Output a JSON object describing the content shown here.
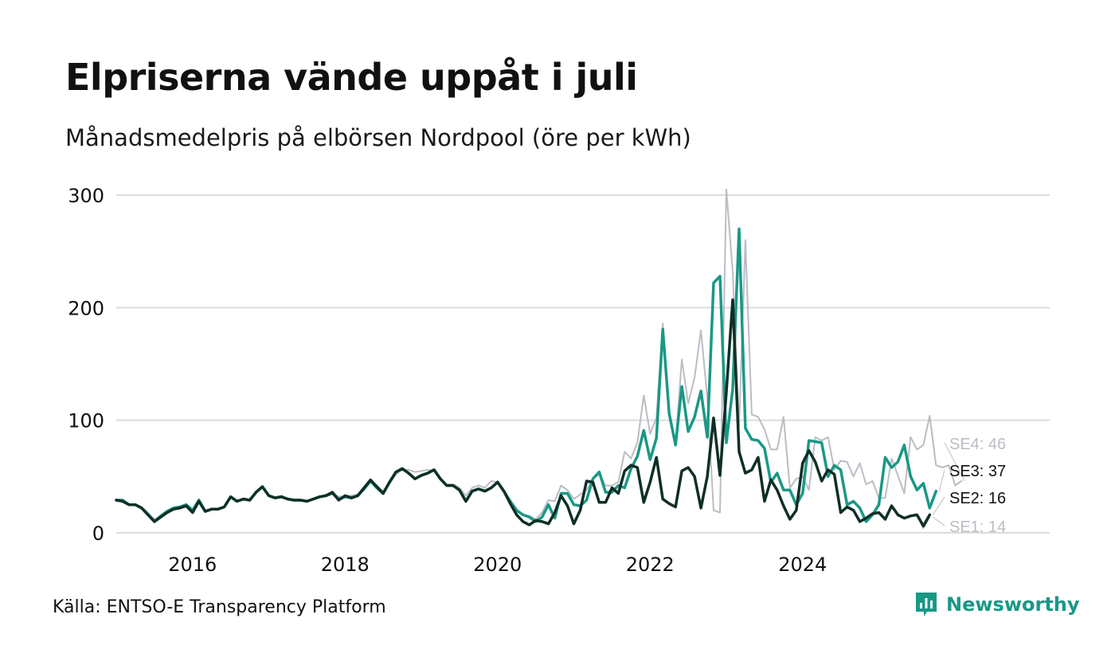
{
  "header": {
    "title": "Elpriserna vände uppåt i juli",
    "subtitle": "Månadsmedelpris på elbörsen Nordpool (öre per kWh)"
  },
  "footer": {
    "source": "Källa: ENTSO-E Transparency Platform",
    "brand_name": "Newsworthy",
    "brand_icon": "bar-chart-speech-icon"
  },
  "colors": {
    "SE1": "#bdbcc5",
    "SE2": "#0e2f26",
    "SE3": "#1a9886",
    "SE4": "#bdbcc5",
    "grid": "#dcdcdc",
    "brand": "#1a9886"
  },
  "chart_data": {
    "type": "line",
    "x_start": "2015-01",
    "x_step": "month",
    "xticks": [
      "2016",
      "2018",
      "2020",
      "2022",
      "2024"
    ],
    "yticks": [
      0,
      100,
      200,
      300
    ],
    "ylim": [
      0,
      300
    ],
    "grid": true,
    "legend": "end-labels-right",
    "end_labels": [
      {
        "series": "SE4",
        "text": "SE4: 46"
      },
      {
        "series": "SE3",
        "text": "SE3: 37"
      },
      {
        "series": "SE2",
        "text": "SE2: 16"
      },
      {
        "series": "SE1",
        "text": "SE1: 14"
      }
    ],
    "series": [
      {
        "name": "SE4",
        "values": [
          29,
          29,
          25,
          25,
          23,
          18,
          12,
          15,
          19,
          22,
          22,
          25,
          18,
          30,
          20,
          21,
          21,
          23,
          32,
          28,
          30,
          29,
          36,
          41,
          33,
          32,
          33,
          30,
          29,
          29,
          28,
          30,
          32,
          34,
          36,
          32,
          33,
          33,
          34,
          41,
          47,
          42,
          37,
          44,
          52,
          56,
          56,
          54,
          55,
          56,
          55,
          48,
          43,
          43,
          40,
          33,
          40,
          42,
          40,
          46,
          45,
          38,
          28,
          20,
          16,
          15,
          12,
          18,
          29,
          28,
          42,
          38,
          30,
          34,
          38,
          48,
          52,
          42,
          42,
          45,
          72,
          66,
          80,
          122,
          88,
          102,
          186,
          108,
          80,
          154,
          115,
          138,
          180,
          120,
          20,
          18,
          305,
          232,
          95,
          260,
          105,
          103,
          92,
          74,
          74,
          103,
          40,
          48,
          50,
          38,
          85,
          82,
          85,
          56,
          64,
          63,
          50,
          62,
          43,
          46,
          31,
          31,
          66,
          51,
          35,
          85,
          74,
          78,
          104,
          60,
          58,
          60,
          42,
          46
        ]
      },
      {
        "name": "SE3",
        "values": [
          29,
          29,
          25,
          25,
          22,
          16,
          10,
          15,
          19,
          22,
          23,
          25,
          20,
          29,
          19,
          21,
          21,
          23,
          32,
          28,
          30,
          29,
          36,
          41,
          33,
          31,
          32,
          30,
          29,
          29,
          28,
          30,
          32,
          33,
          35,
          30,
          32,
          31,
          33,
          39,
          46,
          40,
          35,
          45,
          54,
          57,
          53,
          48,
          51,
          53,
          56,
          48,
          42,
          42,
          38,
          28,
          37,
          39,
          37,
          40,
          45,
          37,
          28,
          20,
          16,
          14,
          10,
          14,
          25,
          13,
          35,
          35,
          25,
          24,
          29,
          48,
          54,
          36,
          36,
          42,
          40,
          57,
          68,
          91,
          65,
          84,
          181,
          106,
          78,
          130,
          90,
          103,
          126,
          85,
          222,
          228,
          80,
          128,
          270,
          93,
          83,
          82,
          75,
          45,
          53,
          38,
          38,
          25,
          35,
          82,
          81,
          80,
          50,
          60,
          56,
          25,
          28,
          22,
          10,
          16,
          25,
          67,
          58,
          63,
          78,
          50,
          38,
          44,
          22,
          37
        ]
      },
      {
        "name": "SE2",
        "values": [
          29,
          28,
          25,
          25,
          22,
          16,
          10,
          14,
          18,
          21,
          22,
          24,
          18,
          28,
          19,
          21,
          21,
          23,
          32,
          28,
          30,
          29,
          36,
          41,
          33,
          31,
          32,
          30,
          29,
          29,
          28,
          30,
          32,
          33,
          36,
          29,
          33,
          31,
          33,
          40,
          47,
          41,
          35,
          45,
          54,
          57,
          53,
          48,
          51,
          53,
          56,
          48,
          42,
          42,
          38,
          28,
          37,
          39,
          37,
          40,
          45,
          37,
          26,
          16,
          10,
          7,
          11,
          10,
          8,
          18,
          33,
          24,
          8,
          20,
          46,
          45,
          27,
          27,
          40,
          35,
          55,
          60,
          58,
          27,
          45,
          67,
          30,
          26,
          23,
          55,
          58,
          50,
          22,
          50,
          102,
          51,
          125,
          207,
          72,
          53,
          56,
          67,
          28,
          47,
          38,
          24,
          12,
          20,
          62,
          73,
          63,
          46,
          56,
          52,
          18,
          23,
          20,
          10,
          13,
          17,
          18,
          12,
          24,
          16,
          13,
          15,
          16,
          6,
          16
        ]
      },
      {
        "name": "SE1",
        "values": [
          29,
          28,
          25,
          25,
          22,
          16,
          10,
          14,
          18,
          21,
          22,
          24,
          18,
          28,
          19,
          21,
          21,
          23,
          32,
          28,
          30,
          29,
          36,
          41,
          33,
          31,
          32,
          30,
          29,
          29,
          28,
          30,
          32,
          33,
          36,
          29,
          33,
          31,
          33,
          40,
          47,
          41,
          35,
          45,
          54,
          57,
          53,
          48,
          51,
          53,
          56,
          48,
          42,
          42,
          38,
          28,
          37,
          39,
          37,
          40,
          45,
          37,
          26,
          16,
          10,
          7,
          11,
          10,
          8,
          18,
          33,
          24,
          8,
          20,
          46,
          45,
          27,
          27,
          40,
          35,
          55,
          60,
          58,
          27,
          45,
          67,
          30,
          26,
          23,
          55,
          58,
          50,
          22,
          50,
          102,
          51,
          125,
          207,
          72,
          53,
          56,
          67,
          28,
          47,
          38,
          24,
          12,
          20,
          62,
          73,
          63,
          46,
          56,
          52,
          18,
          23,
          20,
          10,
          13,
          17,
          18,
          12,
          24,
          16,
          13,
          15,
          16,
          4,
          14
        ]
      }
    ]
  }
}
